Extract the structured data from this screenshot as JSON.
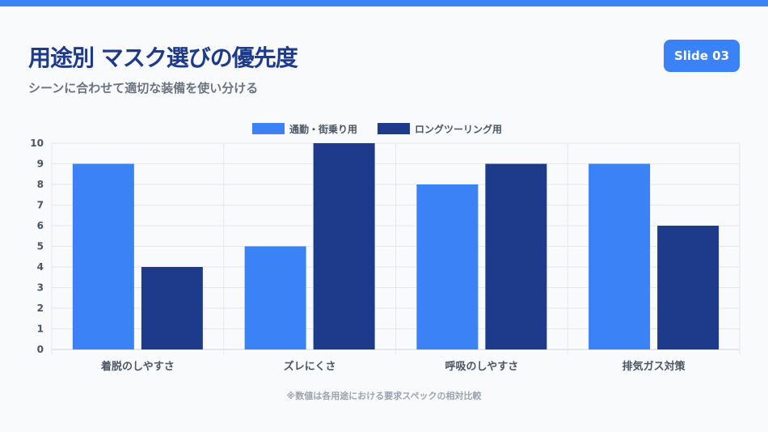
{
  "header": {
    "title": "用途別 マスク選びの優先度",
    "subtitle": "シーンに合わせて適切な装備を使い分ける",
    "badge": "Slide 03"
  },
  "footnote": "※数値は各用途における要求スペックの相対比較",
  "chart_data": {
    "type": "bar",
    "categories": [
      "着脱のしやすさ",
      "ズレにくさ",
      "呼吸のしやすさ",
      "排気ガス対策"
    ],
    "series": [
      {
        "name": "通勤・街乗り用",
        "color": "#3b82f6",
        "values": [
          9,
          5,
          8,
          9
        ]
      },
      {
        "name": "ロングツーリング用",
        "color": "#1e3a8a",
        "values": [
          4,
          10,
          9,
          6
        ]
      }
    ],
    "ylim": [
      0,
      10
    ],
    "yticks": [
      "0",
      "1",
      "2",
      "3",
      "4",
      "5",
      "6",
      "7",
      "8",
      "9",
      "10"
    ],
    "grid": true,
    "legend": "top-center"
  }
}
